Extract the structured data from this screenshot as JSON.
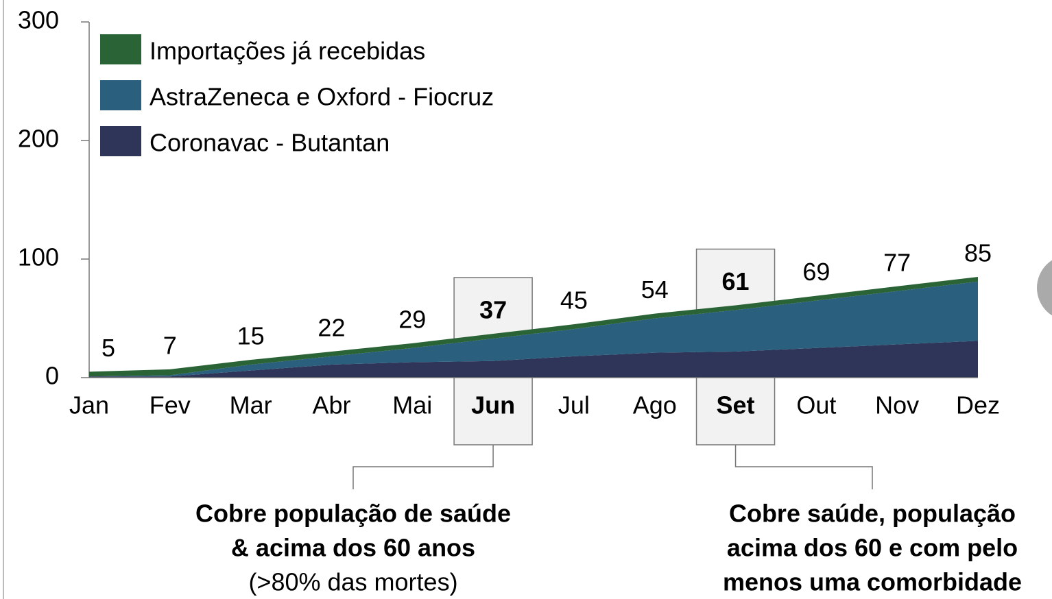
{
  "chart_data": {
    "type": "stacked_area",
    "categories": [
      "Jan",
      "Fev",
      "Mar",
      "Abr",
      "Mai",
      "Jun",
      "Jul",
      "Ago",
      "Set",
      "Out",
      "Nov",
      "Dez"
    ],
    "series": [
      {
        "name": "Coronavac - Butantan",
        "color": "#2e3558",
        "values": [
          1,
          1,
          6,
          11,
          13,
          14,
          18,
          21,
          22,
          25,
          28,
          31
        ]
      },
      {
        "name": "AstraZeneca e Oxford - Fiocruz",
        "color": "#2a5f7e",
        "values": [
          0,
          1,
          5,
          7,
          12,
          19,
          23,
          29,
          35,
          40,
          45,
          50
        ]
      },
      {
        "name": "Importações já recebidas",
        "color": "#2a6436",
        "values": [
          4,
          5,
          4,
          4,
          4,
          4,
          4,
          4,
          4,
          4,
          4,
          4
        ]
      }
    ],
    "totals": [
      5,
      7,
      15,
      22,
      29,
      37,
      45,
      54,
      61,
      69,
      77,
      85
    ],
    "highlight_indices": [
      5,
      8
    ],
    "ylim": [
      0,
      300
    ],
    "yticks": [
      0,
      100,
      200,
      300
    ],
    "legend": "top-left",
    "annotations": [
      {
        "lines": [
          "Cobre população de saúde",
          "& acima dos 60 anos"
        ],
        "note": "(>80% das mortes)"
      },
      {
        "lines": [
          "Cobre saúde, população",
          "acima dos 60 e com pelo",
          "menos uma comorbidade"
        ]
      }
    ]
  }
}
